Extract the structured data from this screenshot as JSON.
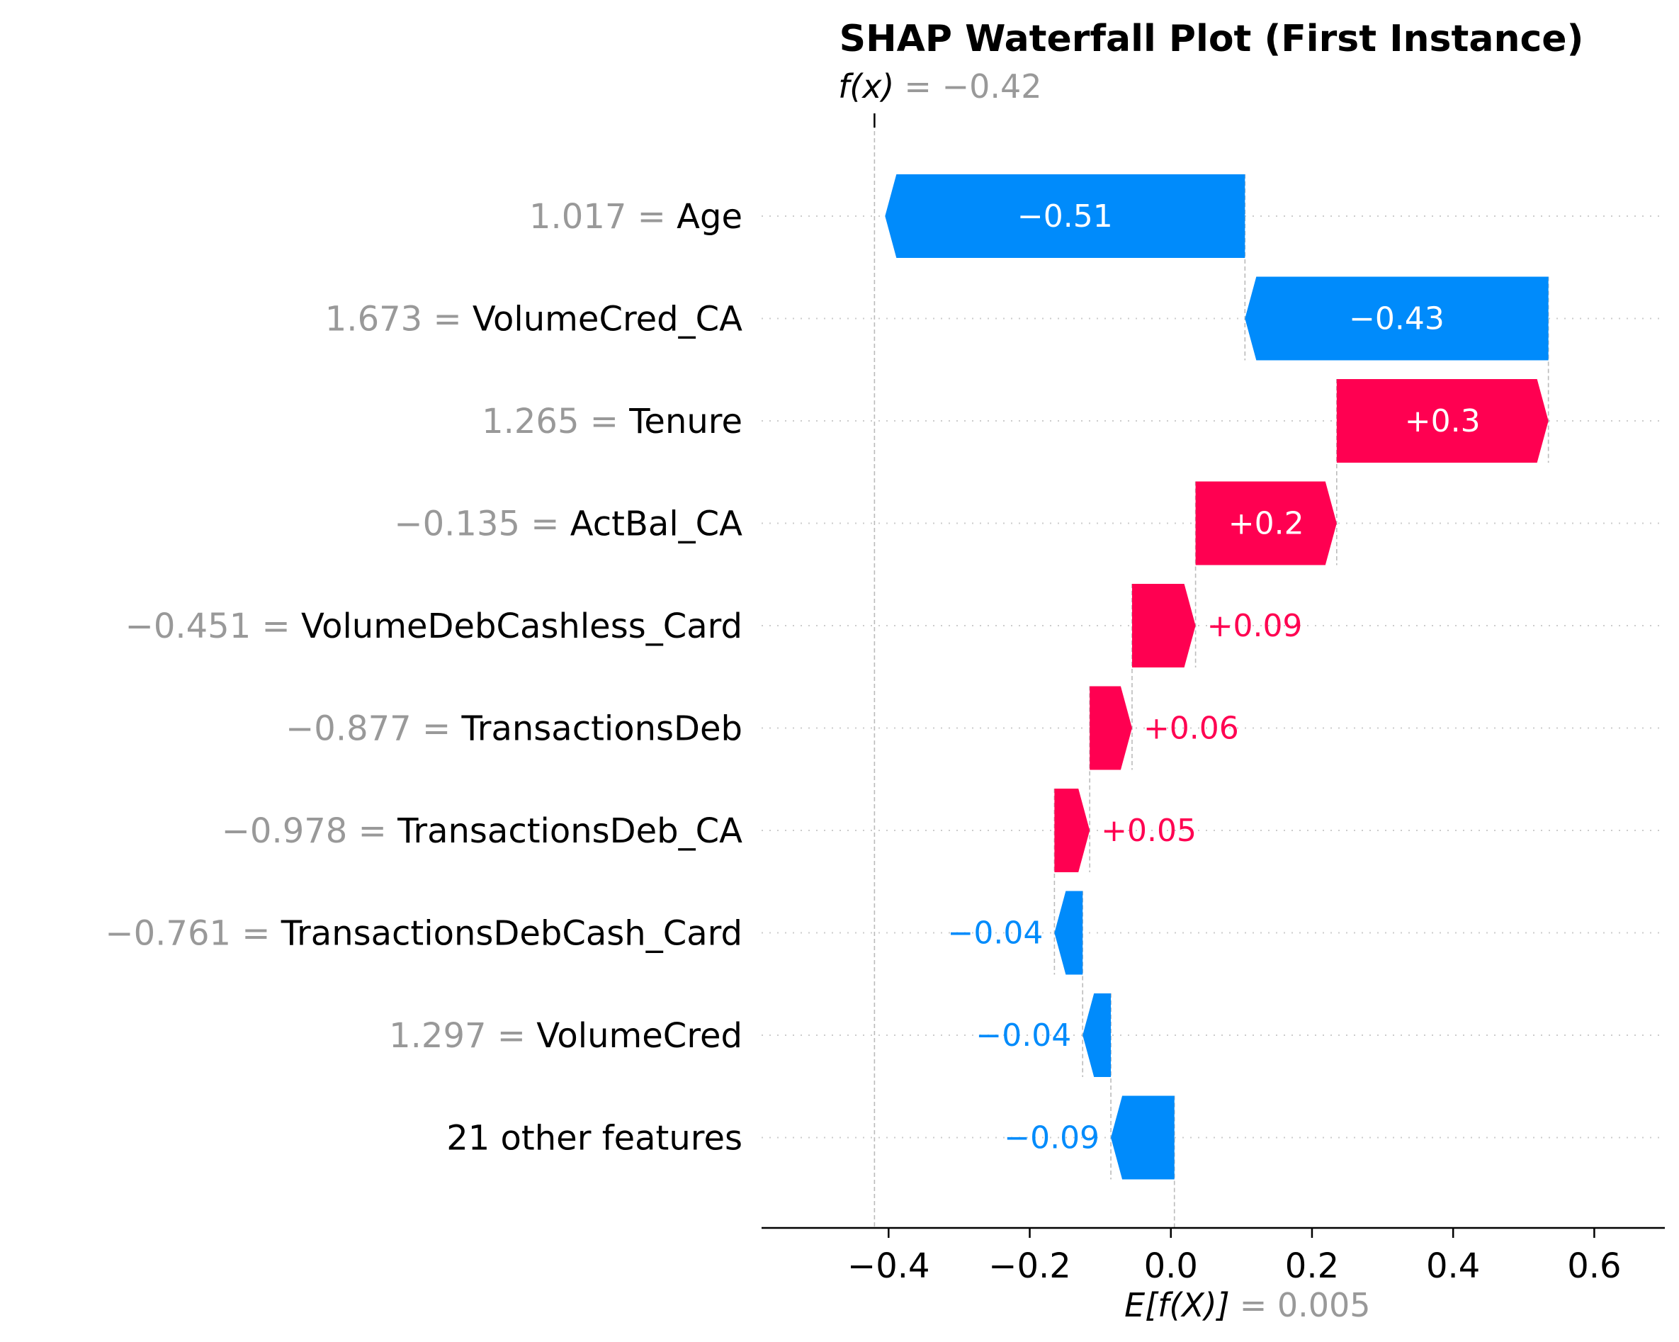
{
  "chart_data": {
    "type": "waterfall",
    "title": "SHAP Waterfall Plot (First Instance)",
    "base_value": 0.005,
    "output_value": -0.42,
    "fx_label": "f(x)",
    "fx_value_text": "= −0.42",
    "ex_label": "E[f(X)]",
    "ex_value_text": "= 0.005",
    "features": [
      {
        "value": "1.017",
        "name": "Age",
        "shap": -0.51,
        "label": "−0.51"
      },
      {
        "value": "1.673",
        "name": "VolumeCred_CA",
        "shap": -0.43,
        "label": "−0.43"
      },
      {
        "value": "1.265",
        "name": "Tenure",
        "shap": 0.3,
        "label": "+0.3"
      },
      {
        "value": "−0.135",
        "name": "ActBal_CA",
        "shap": 0.2,
        "label": "+0.2"
      },
      {
        "value": "−0.451",
        "name": "VolumeDebCashless_Card",
        "shap": 0.09,
        "label": "+0.09"
      },
      {
        "value": "−0.877",
        "name": "TransactionsDeb",
        "shap": 0.06,
        "label": "+0.06"
      },
      {
        "value": "−0.978",
        "name": "TransactionsDeb_CA",
        "shap": 0.05,
        "label": "+0.05"
      },
      {
        "value": "−0.761",
        "name": "TransactionsDebCash_Card",
        "shap": -0.04,
        "label": "−0.04"
      },
      {
        "value": "1.297",
        "name": "VolumeCred",
        "shap": -0.04,
        "label": "−0.04"
      },
      {
        "value": "",
        "name": "21 other features",
        "shap": -0.09,
        "label": "−0.09"
      }
    ],
    "xlim": [
      -0.58,
      0.7
    ],
    "xticks": [
      -0.4,
      -0.2,
      0.0,
      0.2,
      0.4,
      0.6
    ],
    "xtick_labels": [
      "−0.4",
      "−0.2",
      "0.0",
      "0.2",
      "0.4",
      "0.6"
    ],
    "colors": {
      "positive": "#ff0051",
      "negative": "#008bfb",
      "value_text": "#999999",
      "guide": "#bbbbbb"
    }
  }
}
